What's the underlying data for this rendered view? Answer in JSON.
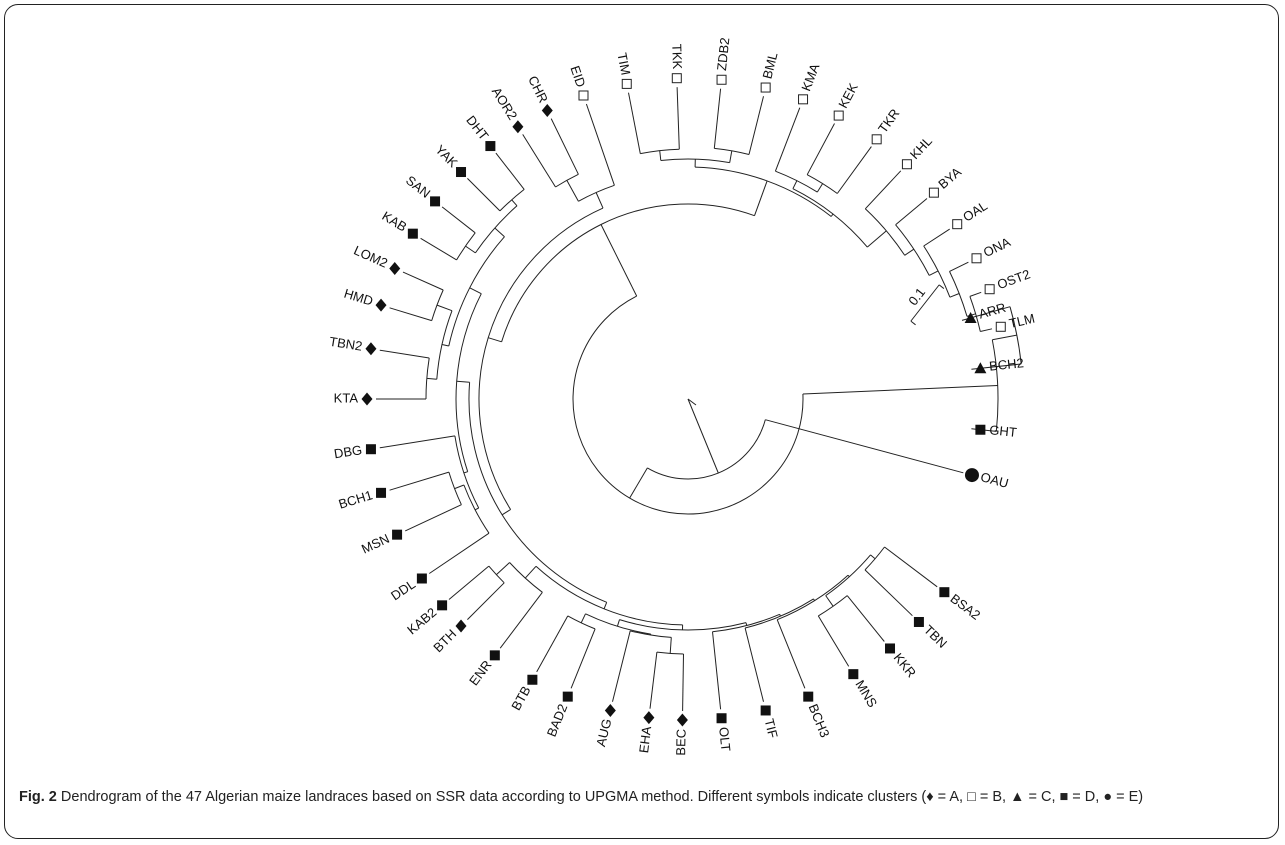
{
  "caption": {
    "label": "Fig. 2",
    "text": "Dendrogram of the 47 Algerian maize landraces based on SSR data according to UPGMA method. Different symbols indicate clusters (♦ = A, □ = B, ▲ = C, ■ = D, ● = E)"
  },
  "scale_label": "0.1",
  "leaves": [
    {
      "name": "ARR",
      "cluster": "C"
    },
    {
      "name": "BCH2",
      "cluster": "C"
    },
    {
      "name": "GHT",
      "cluster": "D"
    },
    {
      "name": "OAU",
      "cluster": "E"
    },
    {
      "name": "BSA2",
      "cluster": "D"
    },
    {
      "name": "TBN",
      "cluster": "D"
    },
    {
      "name": "KKR",
      "cluster": "D"
    },
    {
      "name": "MNS",
      "cluster": "D"
    },
    {
      "name": "BCH3",
      "cluster": "D"
    },
    {
      "name": "TIF",
      "cluster": "D"
    },
    {
      "name": "OLT",
      "cluster": "D"
    },
    {
      "name": "BEC",
      "cluster": "A"
    },
    {
      "name": "EHA",
      "cluster": "A"
    },
    {
      "name": "AUG",
      "cluster": "A"
    },
    {
      "name": "BAD2",
      "cluster": "D"
    },
    {
      "name": "BTB",
      "cluster": "D"
    },
    {
      "name": "ENR",
      "cluster": "D"
    },
    {
      "name": "BTH",
      "cluster": "A"
    },
    {
      "name": "KAB2",
      "cluster": "D"
    },
    {
      "name": "DDL",
      "cluster": "D"
    },
    {
      "name": "MSN",
      "cluster": "D"
    },
    {
      "name": "BCH1",
      "cluster": "D"
    },
    {
      "name": "DBG",
      "cluster": "D"
    },
    {
      "name": "KTA",
      "cluster": "A"
    },
    {
      "name": "TBN2",
      "cluster": "A"
    },
    {
      "name": "HMD",
      "cluster": "A"
    },
    {
      "name": "LOM2",
      "cluster": "A"
    },
    {
      "name": "KAB",
      "cluster": "D"
    },
    {
      "name": "SAN",
      "cluster": "D"
    },
    {
      "name": "YAK",
      "cluster": "D"
    },
    {
      "name": "DHT",
      "cluster": "D"
    },
    {
      "name": "AOR2",
      "cluster": "A"
    },
    {
      "name": "CHR",
      "cluster": "A"
    },
    {
      "name": "EID",
      "cluster": "B"
    },
    {
      "name": "TIM",
      "cluster": "B"
    },
    {
      "name": "TKK",
      "cluster": "B"
    },
    {
      "name": "ZDB2",
      "cluster": "B"
    },
    {
      "name": "BML",
      "cluster": "B"
    },
    {
      "name": "KMA",
      "cluster": "B"
    },
    {
      "name": "KEK",
      "cluster": "B"
    },
    {
      "name": "TKR",
      "cluster": "B"
    },
    {
      "name": "KHL",
      "cluster": "B"
    },
    {
      "name": "BYA",
      "cluster": "B"
    },
    {
      "name": "OAL",
      "cluster": "B"
    },
    {
      "name": "ONA",
      "cluster": "B"
    },
    {
      "name": "OST2",
      "cluster": "B"
    },
    {
      "name": "TLM",
      "cluster": "B"
    }
  ]
}
